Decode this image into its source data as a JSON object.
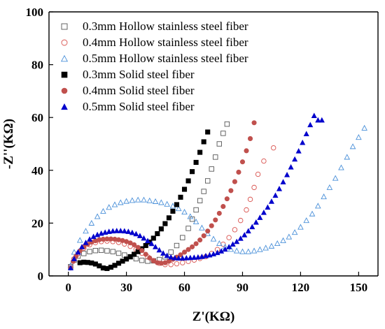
{
  "chart_data": {
    "type": "scatter",
    "title": "",
    "xlabel": "Z'(KΩ)",
    "ylabel": "-Z''(KΩ)",
    "xlim": [
      -10,
      160
    ],
    "ylim": [
      0,
      100
    ],
    "xticks": [
      0,
      30,
      60,
      90,
      120,
      150
    ],
    "yticks": [
      0,
      20,
      40,
      60,
      80,
      100
    ],
    "legend_position": "top-left",
    "series": [
      {
        "name": "0.3mm Hollow stainless steel fiber",
        "marker": "square-open",
        "color": "#555555",
        "x": [
          1.2,
          3,
          5,
          8,
          11,
          14,
          17,
          20,
          23,
          26,
          29,
          32,
          35,
          38,
          41,
          44,
          47,
          50,
          53,
          56,
          59,
          62,
          64,
          66,
          68,
          70,
          72,
          74,
          76,
          78,
          80,
          82
        ],
        "y": [
          3.5,
          6,
          7.5,
          8.5,
          9.2,
          9.6,
          9.7,
          9.5,
          9.2,
          8.6,
          7.9,
          7.2,
          6.5,
          5.9,
          5.6,
          5.7,
          6.2,
          7.2,
          9,
          11.5,
          14.5,
          18,
          21.5,
          25,
          28.5,
          32,
          36,
          40.5,
          45,
          50,
          54,
          57.5
        ]
      },
      {
        "name": "0.4mm Hollow stainless steel fiber",
        "marker": "circle-open",
        "color": "#d9534f",
        "x": [
          1.2,
          3,
          5,
          8,
          11,
          14,
          17,
          20,
          23,
          26,
          29,
          32,
          35,
          38,
          41,
          44,
          47,
          50,
          53,
          56,
          59,
          62,
          65,
          68,
          71,
          74,
          77,
          80,
          83,
          86,
          89,
          92,
          94,
          96,
          98,
          101,
          106
        ],
        "y": [
          3.5,
          6.5,
          8.5,
          10.5,
          11.8,
          12.6,
          13,
          13.2,
          13,
          12.7,
          12.1,
          11.2,
          10,
          8.6,
          7.2,
          5.8,
          4.8,
          4.3,
          4.3,
          4.6,
          5,
          5.5,
          6,
          6.6,
          7.3,
          8.5,
          10,
          12,
          14.5,
          17.5,
          21,
          25,
          29,
          33.5,
          38.5,
          43.5,
          48.5
        ]
      },
      {
        "name": "0.5mm Hollow stainless steel fiber",
        "marker": "triangle-open",
        "color": "#4a90d9",
        "x": [
          1.2,
          3,
          6,
          9,
          12,
          15,
          18,
          21,
          24,
          27,
          30,
          33,
          36,
          39,
          42,
          45,
          48,
          51,
          54,
          57,
          60,
          63,
          66,
          69,
          72,
          75,
          78,
          81,
          84,
          87,
          90,
          93,
          96,
          99,
          102,
          105,
          108,
          111,
          114,
          117,
          120,
          123,
          126,
          129,
          132,
          135,
          138,
          141,
          144,
          147,
          150,
          153
        ],
        "y": [
          4,
          9,
          13.5,
          17,
          20,
          22.5,
          24.5,
          26,
          27,
          27.8,
          28.3,
          28.6,
          28.8,
          28.8,
          28.5,
          28.2,
          27.8,
          27.2,
          26.5,
          25.5,
          24.2,
          22.5,
          20.5,
          18.2,
          16,
          14,
          12.3,
          11,
          10.1,
          9.5,
          9.2,
          9.2,
          9.5,
          10,
          10.6,
          11.3,
          12.3,
          13.4,
          14.8,
          16.5,
          18.5,
          21,
          23.5,
          26.5,
          30,
          33.5,
          37,
          41,
          45,
          49,
          52.5,
          56
        ]
      },
      {
        "name": "0.3mm Solid steel fiber",
        "marker": "square-filled",
        "color": "#000000",
        "x": [
          6,
          8,
          10,
          12,
          14,
          16,
          18,
          20,
          22,
          24,
          26,
          28,
          30,
          32,
          34,
          36,
          38,
          40,
          42,
          44,
          46,
          48,
          50,
          52,
          54,
          56,
          58,
          60,
          62,
          64,
          66,
          68,
          70,
          72
        ],
        "y": [
          5,
          5.2,
          5.1,
          4.9,
          4.5,
          3.8,
          3,
          2.8,
          3.3,
          4,
          4.8,
          5.6,
          6.4,
          7.3,
          8.2,
          9.2,
          10.3,
          11.5,
          12.8,
          14.3,
          16,
          17.8,
          19.8,
          22,
          24.5,
          27,
          29.8,
          32.8,
          36,
          39.5,
          43,
          46.8,
          50.8,
          54.5
        ]
      },
      {
        "name": "0.4mm Solid steel fiber",
        "marker": "circle-filled",
        "color": "#c0504d",
        "x": [
          1.2,
          2.5,
          4,
          6,
          8,
          10,
          12,
          14,
          16,
          18,
          20,
          22,
          24,
          26,
          28,
          30,
          32,
          34,
          36,
          38,
          40,
          42,
          44,
          46,
          48,
          50,
          52,
          54,
          56,
          58,
          60,
          62,
          64,
          66,
          68,
          70,
          72,
          74,
          76,
          78,
          80,
          82,
          84,
          86,
          88,
          90,
          92,
          94,
          96
        ],
        "y": [
          3,
          5.5,
          7.5,
          9.5,
          11,
          12,
          12.8,
          13.3,
          13.7,
          13.9,
          14,
          14,
          13.9,
          13.7,
          13.4,
          13,
          12.5,
          11.8,
          10.8,
          9.6,
          8.2,
          6.8,
          5.7,
          5,
          4.8,
          5,
          5.6,
          6.3,
          7.1,
          8,
          9,
          10,
          11,
          12.2,
          13.6,
          15.2,
          17,
          19,
          21.2,
          23.7,
          26.3,
          29.2,
          32.3,
          35.7,
          39.3,
          43.2,
          47.4,
          52,
          58
        ]
      },
      {
        "name": "0.5mm Solid steel fiber",
        "marker": "triangle-filled",
        "color": "#0000cc",
        "x": [
          1.2,
          3,
          5,
          7,
          9,
          11,
          13,
          15,
          17,
          19,
          21,
          23,
          25,
          27,
          29,
          31,
          33,
          35,
          37,
          39,
          41,
          43,
          45,
          47,
          49,
          51,
          53,
          55,
          57,
          59,
          61,
          63,
          65,
          67,
          69,
          71,
          73,
          75,
          77,
          79,
          81,
          83,
          85,
          87,
          89,
          91,
          93,
          95,
          97,
          99,
          101,
          103,
          105,
          107,
          109,
          111,
          113,
          115,
          117,
          119,
          121,
          123,
          125,
          127,
          129,
          131
        ],
        "y": [
          3,
          6.5,
          9,
          11,
          12.6,
          13.9,
          14.9,
          15.6,
          16.1,
          16.5,
          16.8,
          17,
          17.1,
          17.1,
          17,
          16.8,
          16.4,
          15.9,
          15.2,
          14.3,
          13.3,
          12.2,
          11,
          9.8,
          8.6,
          7.7,
          7.1,
          6.8,
          6.7,
          6.7,
          6.8,
          6.9,
          7,
          7.1,
          7.3,
          7.6,
          7.9,
          8.3,
          8.8,
          9.4,
          10.1,
          11,
          12,
          13,
          14.2,
          15.5,
          17,
          18.6,
          20.3,
          22.1,
          24,
          26,
          28.2,
          30.5,
          33,
          35.6,
          38.3,
          41.2,
          44.2,
          47.3,
          50.5,
          53.8,
          57.2,
          60.7,
          59,
          59
        ]
      }
    ]
  }
}
